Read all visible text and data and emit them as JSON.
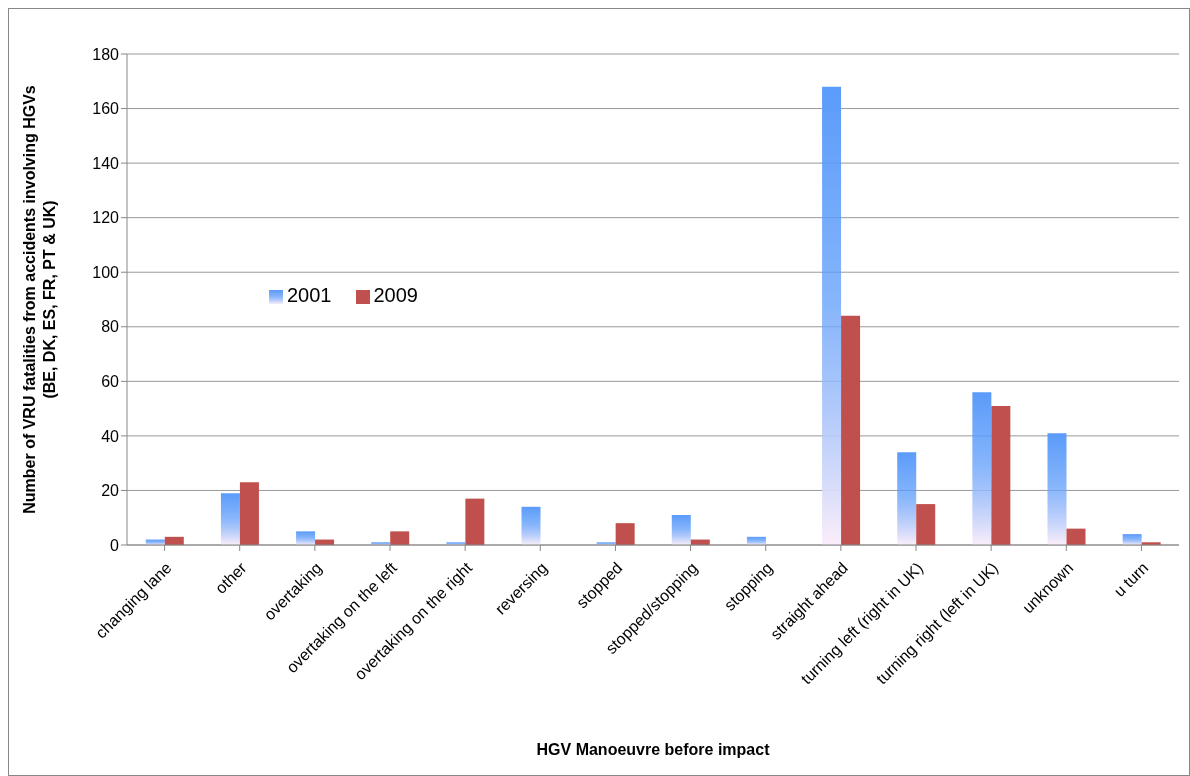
{
  "chart_data": {
    "type": "bar",
    "xlabel": "HGV Manoeuvre before impact",
    "ylabel": "Number of VRU fatalities from accidents involving HGVs (BE, DK, ES, FR, PT & UK)",
    "categories": [
      "changing lane",
      "other",
      "overtaking",
      "overtaking on the left",
      "overtaking on the right",
      "reversing",
      "stopped",
      "stopped/stopping",
      "stopping",
      "straight ahead",
      "turning left (right in UK)",
      "turning right (left in UK)",
      "unknown",
      "u turn"
    ],
    "series": [
      {
        "name": "2001",
        "color": "#5b9bfa",
        "values": [
          2,
          19,
          5,
          1,
          1,
          14,
          1,
          11,
          3,
          168,
          34,
          56,
          41,
          4
        ]
      },
      {
        "name": "2009",
        "color": "#c0504d",
        "values": [
          3,
          23,
          2,
          5,
          17,
          0,
          8,
          2,
          0,
          84,
          15,
          51,
          6,
          1
        ]
      }
    ],
    "ylim": [
      0,
      180
    ],
    "yticks": [
      0,
      20,
      40,
      60,
      80,
      100,
      120,
      140,
      160,
      180
    ],
    "grid": "y",
    "legend": "left"
  }
}
